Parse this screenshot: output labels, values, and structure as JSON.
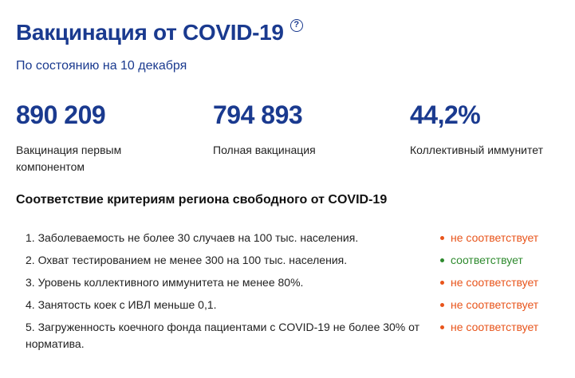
{
  "header": {
    "title": "Вакцинация от COVID-19",
    "help_glyph": "?",
    "subtitle": "По состоянию на 10 декабря"
  },
  "stats": [
    {
      "value": "890 209",
      "label": "Вакцинация первым компонентом"
    },
    {
      "value": "794 893",
      "label": "Полная вакцинация"
    },
    {
      "value": "44,2%",
      "label": "Коллективный иммунитет"
    }
  ],
  "criteria": {
    "title": "Соответствие критериям региона свободного от COVID-19",
    "items": [
      {
        "text": "1. Заболеваемость не более 30 случаев на 100 тыс. населения.",
        "status": "не соответствует"
      },
      {
        "text": "2. Охват тестированием не менее 300 на 100 тыс. населения.",
        "status": "соответствует"
      },
      {
        "text": "3. Уровень коллективного иммунитета не менее 80%.",
        "status": "не соответствует"
      },
      {
        "text": "4. Занятость коек с ИВЛ меньше 0,1.",
        "status": "не соответствует"
      },
      {
        "text": "5. Загруженность коечного фонда пациентами с COVID-19 не более 30% от норматива.",
        "status": "не соответствует"
      }
    ]
  },
  "colors": {
    "brand": "#1a3a8f",
    "status_bad": "#e8541b",
    "status_good": "#2e8a2e"
  }
}
